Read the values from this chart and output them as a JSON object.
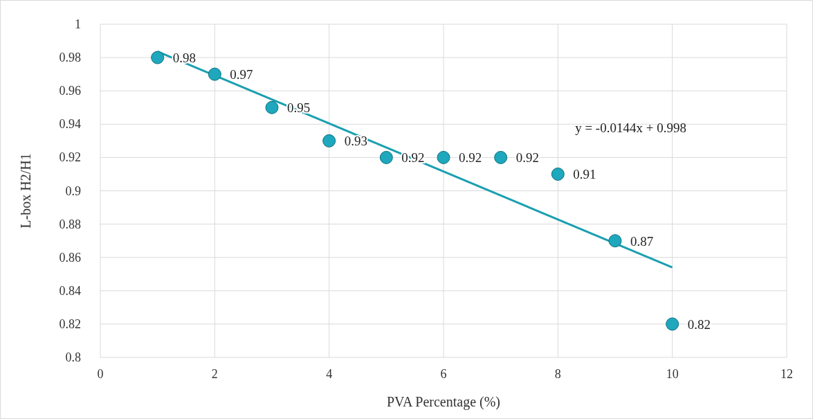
{
  "chart_data": {
    "type": "scatter",
    "xlabel": "PVA Percentage (%)",
    "ylabel": "L-box H2/H1",
    "xlim": [
      0,
      12
    ],
    "xticks": [
      0,
      2,
      4,
      6,
      8,
      10,
      12
    ],
    "ylim": [
      0.8,
      1
    ],
    "yticks": [
      0.8,
      0.82,
      0.84,
      0.86,
      0.88,
      0.9,
      0.92,
      0.94,
      0.96,
      0.98,
      1
    ],
    "grid": true,
    "series": [
      {
        "color": "#1ea7bd",
        "marker": "circle",
        "x": [
          1,
          2,
          3,
          4,
          5,
          6,
          7,
          8,
          9,
          10
        ],
        "values": [
          0.98,
          0.97,
          0.95,
          0.93,
          0.92,
          0.92,
          0.92,
          0.91,
          0.87,
          0.82
        ],
        "value_labels": [
          "0.98",
          "0.97",
          "0.95",
          "0.93",
          "0.92",
          "0.92",
          "0.92",
          "0.91",
          "0.87",
          "0.82"
        ]
      },
      {
        "type": "line",
        "color": "#1a9fb0",
        "x": [
          1,
          10
        ],
        "values": [
          0.9836,
          0.854
        ],
        "marker": "none"
      }
    ],
    "annotations": [
      "y = -0.0144x + 0.998"
    ]
  }
}
